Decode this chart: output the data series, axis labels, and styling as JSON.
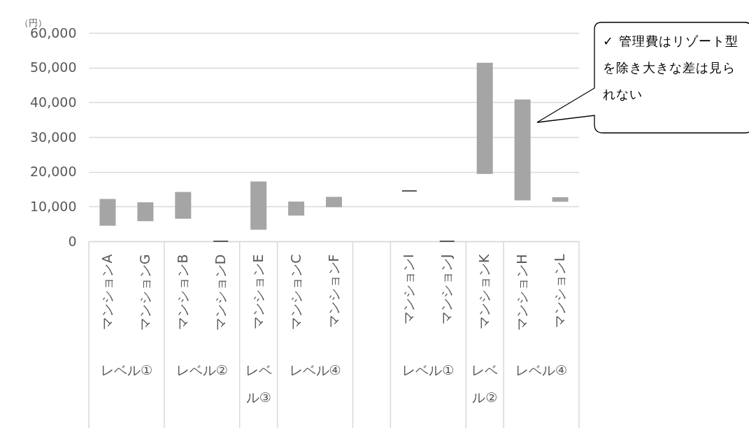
{
  "chart_data": {
    "type": "bar",
    "ylabel": "（円）",
    "categories": [
      "マンションA",
      "マンションG",
      "マンションB",
      "マンションD",
      "マンションE",
      "マンションC",
      "マンションF",
      null,
      "マンションI",
      "マンションJ",
      "マンションK",
      "マンションH",
      "マンションL"
    ],
    "base": [
      4700,
      6000,
      6700,
      0,
      3500,
      7600,
      10000,
      null,
      14500,
      0,
      19600,
      12000,
      11600
    ],
    "values": [
      7300,
      5000,
      7300,
      0,
      13500,
      3600,
      2600,
      null,
      0,
      0,
      31600,
      28600,
      900
    ],
    "colors": [
      "#a5a5a5",
      "#a5a5a5",
      "#a5a5a5",
      "#595959",
      "#a5a5a5",
      "#a5a5a5",
      "#a5a5a5",
      "#a5a5a5",
      "#595959",
      "#595959",
      "#a5a5a5",
      "#a5a5a5",
      "#a5a5a5"
    ],
    "ylim": [
      0,
      60000
    ],
    "yticks": [
      {
        "value": 0,
        "label": "0"
      },
      {
        "value": 10000,
        "label": "10,000"
      },
      {
        "value": 20000,
        "label": "20,000"
      },
      {
        "value": 30000,
        "label": "30,000"
      },
      {
        "value": 40000,
        "label": "40,000"
      },
      {
        "value": 50000,
        "label": "50,000"
      },
      {
        "value": 60000,
        "label": "60,000"
      }
    ],
    "grid": "y",
    "legend": false,
    "annotations": [
      "✓ 管理費はリゾート型を除き大きな差は見られない",
      "レベル①",
      "レベル②",
      "レベル③",
      "レベル④",
      "レベル①",
      "レベル②",
      "レベル④"
    ]
  }
}
